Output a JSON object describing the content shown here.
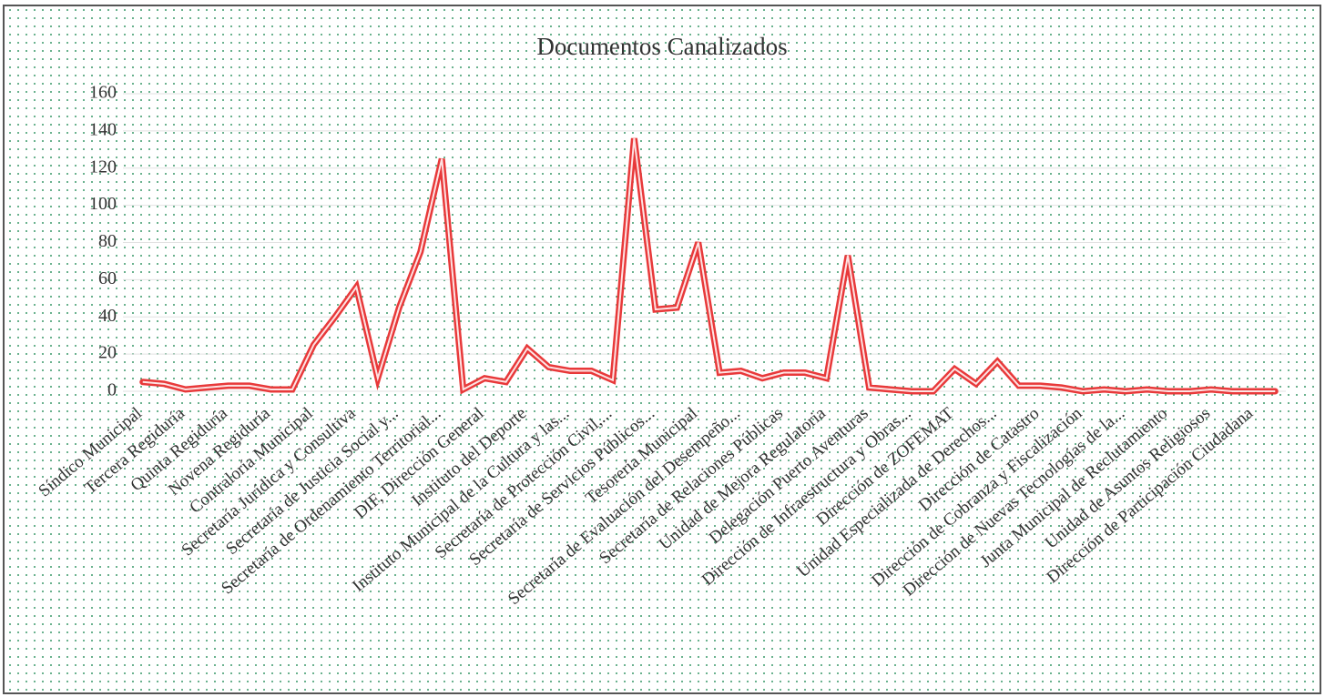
{
  "chart_data": {
    "type": "line",
    "title": "Documentos Canalizados",
    "categories": [
      "Síndico Municipal",
      null,
      "Tercera Regiduría",
      null,
      "Quinta Regiduría",
      null,
      "Novena Regiduría",
      null,
      "Contraloría Municipal",
      null,
      "Secretaría Jurídica y Consultiva",
      null,
      "Secretaría de Justicia Social y...",
      null,
      "Secretaría de Ordenamiento Territorial...",
      null,
      "DIF, Dirección General",
      null,
      "Instituto del Deporte",
      null,
      "Instituto Municipal de la Cultura y las...",
      null,
      "Secretaría de Protección Civil,...",
      null,
      "Secretaría de Servicios Públicos...",
      null,
      "Tesorería Municipal",
      null,
      "Secretaría de Evaluación del Desempeño...",
      null,
      "Secretaría de Relaciones Públicas",
      null,
      "Unidad de Mejora Regulatoria",
      null,
      "Delegación Puerto Aventuras",
      null,
      "Dirección de Infraestructura y Obras...",
      null,
      "Dirección de ZOFEMAT",
      null,
      "Unidad Especializada de Derechos...",
      null,
      "Dirección de Catastro",
      null,
      "Dirección de Cobranza y Fiscalización",
      null,
      "Dirección de Nuevas Tecnologías de la...",
      null,
      "Junta Municipal de Reclutamiento",
      null,
      "Unidad de Asuntos Religiosos",
      null,
      "Dirección de Participación Ciudadana",
      null
    ],
    "series": [
      {
        "name": "Documentos Canalizados",
        "color": "#e8393a",
        "values": [
          5,
          4,
          1,
          2,
          3,
          3,
          1,
          1,
          25,
          40,
          56,
          7,
          45,
          75,
          125,
          1,
          7,
          5,
          23,
          13,
          11,
          11,
          6,
          136,
          44,
          45,
          80,
          10,
          11,
          7,
          10,
          10,
          7,
          73,
          2,
          1,
          0,
          0,
          12,
          4,
          16,
          3,
          3,
          2,
          0,
          1,
          0,
          1,
          0,
          0,
          1,
          0,
          0,
          0
        ]
      }
    ],
    "ylim": [
      0,
      160
    ],
    "yticks": [
      0,
      20,
      40,
      60,
      80,
      100,
      120,
      140,
      160
    ],
    "grid": true
  }
}
